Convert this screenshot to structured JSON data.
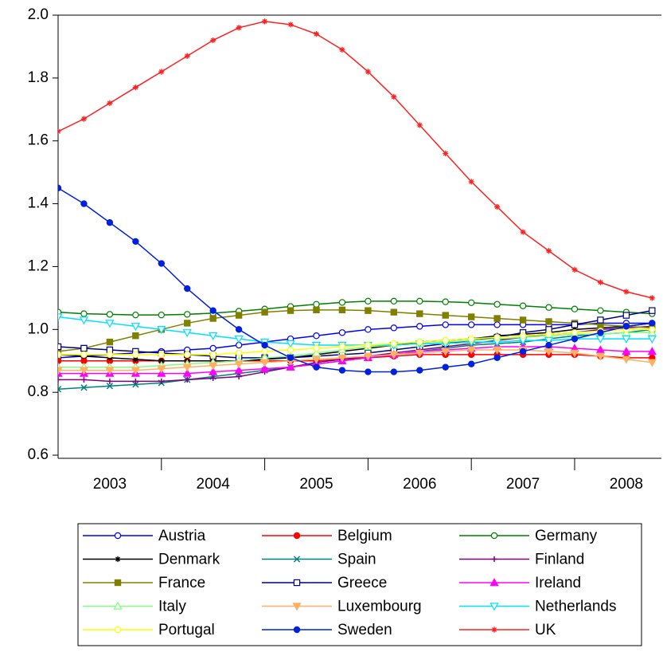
{
  "chart_data": {
    "type": "line",
    "x": [
      2003.0,
      2003.25,
      2003.5,
      2003.75,
      2004.0,
      2004.25,
      2004.5,
      2004.75,
      2005.0,
      2005.25,
      2005.5,
      2005.75,
      2006.0,
      2006.25,
      2006.5,
      2006.75,
      2007.0,
      2007.25,
      2007.5,
      2007.75,
      2008.0,
      2008.25,
      2008.5,
      2008.75
    ],
    "xlim": [
      2003,
      2008.84
    ],
    "xticks": [
      {
        "value": 2003.5,
        "label": "2003"
      },
      {
        "value": 2004.5,
        "label": "2004"
      },
      {
        "value": 2005.5,
        "label": "2005"
      },
      {
        "value": 2006.5,
        "label": "2006"
      },
      {
        "value": 2007.5,
        "label": "2007"
      },
      {
        "value": 2008.5,
        "label": "2008"
      }
    ],
    "xtick_marks": [
      2004,
      2005,
      2006,
      2007,
      2008
    ],
    "ylim": [
      0.59,
      2.0
    ],
    "yticks": [
      {
        "value": 0.6,
        "label": "0.6"
      },
      {
        "value": 0.8,
        "label": "0.8"
      },
      {
        "value": 1.0,
        "label": "1.0"
      },
      {
        "value": 1.2,
        "label": "1.2"
      },
      {
        "value": 1.4,
        "label": "1.4"
      },
      {
        "value": 1.6,
        "label": "1.6"
      },
      {
        "value": 1.8,
        "label": "1.8"
      },
      {
        "value": 2.0,
        "label": "2.0"
      }
    ],
    "grid": false,
    "legend": "bottom",
    "series": [
      {
        "name": "Austria",
        "color": "#0000ff",
        "marker": "circle-open",
        "values": [
          0.91,
          0.915,
          0.92,
          0.925,
          0.93,
          0.935,
          0.94,
          0.95,
          0.96,
          0.97,
          0.98,
          0.99,
          1.0,
          1.005,
          1.01,
          1.015,
          1.015,
          1.015,
          1.015,
          1.015,
          1.015,
          1.02,
          1.02,
          1.02
        ]
      },
      {
        "name": "Belgium",
        "color": "#ff0000",
        "marker": "circle",
        "values": [
          0.9,
          0.9,
          0.9,
          0.9,
          0.9,
          0.9,
          0.9,
          0.9,
          0.9,
          0.9,
          0.9,
          0.905,
          0.91,
          0.915,
          0.92,
          0.92,
          0.92,
          0.92,
          0.92,
          0.92,
          0.92,
          0.915,
          0.91,
          0.91
        ]
      },
      {
        "name": "Germany",
        "color": "#008000",
        "marker": "circle-open",
        "values": [
          1.055,
          1.05,
          1.048,
          1.046,
          1.046,
          1.048,
          1.052,
          1.058,
          1.065,
          1.073,
          1.08,
          1.086,
          1.09,
          1.09,
          1.09,
          1.088,
          1.085,
          1.08,
          1.075,
          1.07,
          1.065,
          1.06,
          1.055,
          1.05
        ]
      },
      {
        "name": "Denmark",
        "color": "#000000",
        "marker": "star",
        "values": [
          0.92,
          0.915,
          0.91,
          0.905,
          0.9,
          0.9,
          0.9,
          0.9,
          0.905,
          0.91,
          0.92,
          0.93,
          0.94,
          0.95,
          0.96,
          0.965,
          0.97,
          0.98,
          0.985,
          0.99,
          1.0,
          1.005,
          1.01,
          1.02
        ]
      },
      {
        "name": "Spain",
        "color": "#008080",
        "marker": "x",
        "values": [
          0.81,
          0.815,
          0.82,
          0.825,
          0.83,
          0.84,
          0.85,
          0.86,
          0.87,
          0.88,
          0.89,
          0.9,
          0.91,
          0.92,
          0.93,
          0.94,
          0.95,
          0.955,
          0.96,
          0.97,
          0.98,
          0.985,
          0.99,
          1.0
        ]
      },
      {
        "name": "Finland",
        "color": "#800080",
        "marker": "plus",
        "values": [
          0.84,
          0.84,
          0.835,
          0.835,
          0.835,
          0.84,
          0.845,
          0.85,
          0.865,
          0.88,
          0.895,
          0.905,
          0.915,
          0.925,
          0.935,
          0.945,
          0.955,
          0.965,
          0.975,
          0.985,
          0.99,
          1.0,
          1.005,
          1.01
        ]
      },
      {
        "name": "France",
        "color": "#808000",
        "marker": "square",
        "values": [
          0.93,
          0.94,
          0.96,
          0.98,
          1.0,
          1.02,
          1.035,
          1.045,
          1.055,
          1.06,
          1.062,
          1.062,
          1.06,
          1.055,
          1.05,
          1.045,
          1.04,
          1.035,
          1.03,
          1.025,
          1.02,
          1.015,
          1.01,
          1.005
        ]
      },
      {
        "name": "Greece",
        "color": "#000080",
        "marker": "square-open",
        "values": [
          0.945,
          0.94,
          0.935,
          0.93,
          0.925,
          0.92,
          0.915,
          0.91,
          0.91,
          0.91,
          0.915,
          0.92,
          0.925,
          0.935,
          0.945,
          0.955,
          0.965,
          0.975,
          0.99,
          1.0,
          1.015,
          1.03,
          1.045,
          1.06
        ]
      },
      {
        "name": "Ireland",
        "color": "#ff00ff",
        "marker": "triangle",
        "values": [
          0.86,
          0.86,
          0.86,
          0.86,
          0.86,
          0.86,
          0.865,
          0.87,
          0.875,
          0.88,
          0.89,
          0.9,
          0.91,
          0.92,
          0.93,
          0.935,
          0.94,
          0.945,
          0.945,
          0.945,
          0.94,
          0.935,
          0.93,
          0.93
        ]
      },
      {
        "name": "Italy",
        "color": "#80ff80",
        "marker": "triangle-open",
        "values": [
          0.88,
          0.88,
          0.88,
          0.88,
          0.885,
          0.89,
          0.895,
          0.9,
          0.91,
          0.915,
          0.925,
          0.935,
          0.945,
          0.95,
          0.955,
          0.96,
          0.965,
          0.97,
          0.975,
          0.98,
          0.985,
          0.985,
          0.99,
          0.99
        ]
      },
      {
        "name": "Luxembourg",
        "color": "#ffb060",
        "marker": "triangle-down",
        "values": [
          0.87,
          0.87,
          0.87,
          0.87,
          0.875,
          0.88,
          0.885,
          0.89,
          0.895,
          0.9,
          0.905,
          0.91,
          0.915,
          0.92,
          0.925,
          0.93,
          0.935,
          0.935,
          0.935,
          0.93,
          0.925,
          0.915,
          0.905,
          0.895
        ]
      },
      {
        "name": "Netherlands",
        "color": "#00e0ff",
        "marker": "triangle-down-open",
        "values": [
          1.04,
          1.03,
          1.02,
          1.01,
          1.0,
          0.99,
          0.98,
          0.97,
          0.96,
          0.955,
          0.95,
          0.95,
          0.95,
          0.95,
          0.955,
          0.955,
          0.96,
          0.96,
          0.965,
          0.965,
          0.97,
          0.97,
          0.97,
          0.97
        ]
      },
      {
        "name": "Portugal",
        "color": "#ffff00",
        "marker": "circle-open",
        "values": [
          0.92,
          0.92,
          0.92,
          0.92,
          0.92,
          0.92,
          0.92,
          0.925,
          0.93,
          0.935,
          0.94,
          0.945,
          0.95,
          0.955,
          0.96,
          0.965,
          0.97,
          0.975,
          0.98,
          0.985,
          0.99,
          0.995,
          1.0,
          1.0
        ]
      },
      {
        "name": "Sweden",
        "color": "#0020e0",
        "marker": "circle",
        "values": [
          1.45,
          1.4,
          1.34,
          1.28,
          1.21,
          1.13,
          1.06,
          1.0,
          0.95,
          0.91,
          0.88,
          0.87,
          0.865,
          0.865,
          0.87,
          0.88,
          0.89,
          0.91,
          0.93,
          0.95,
          0.97,
          0.99,
          1.01,
          1.02
        ]
      },
      {
        "name": "UK",
        "color": "#ff2020",
        "marker": "star",
        "values": [
          1.63,
          1.67,
          1.72,
          1.77,
          1.82,
          1.87,
          1.92,
          1.96,
          1.98,
          1.97,
          1.94,
          1.89,
          1.82,
          1.74,
          1.65,
          1.56,
          1.47,
          1.39,
          1.31,
          1.25,
          1.19,
          1.15,
          1.12,
          1.1
        ]
      }
    ]
  }
}
